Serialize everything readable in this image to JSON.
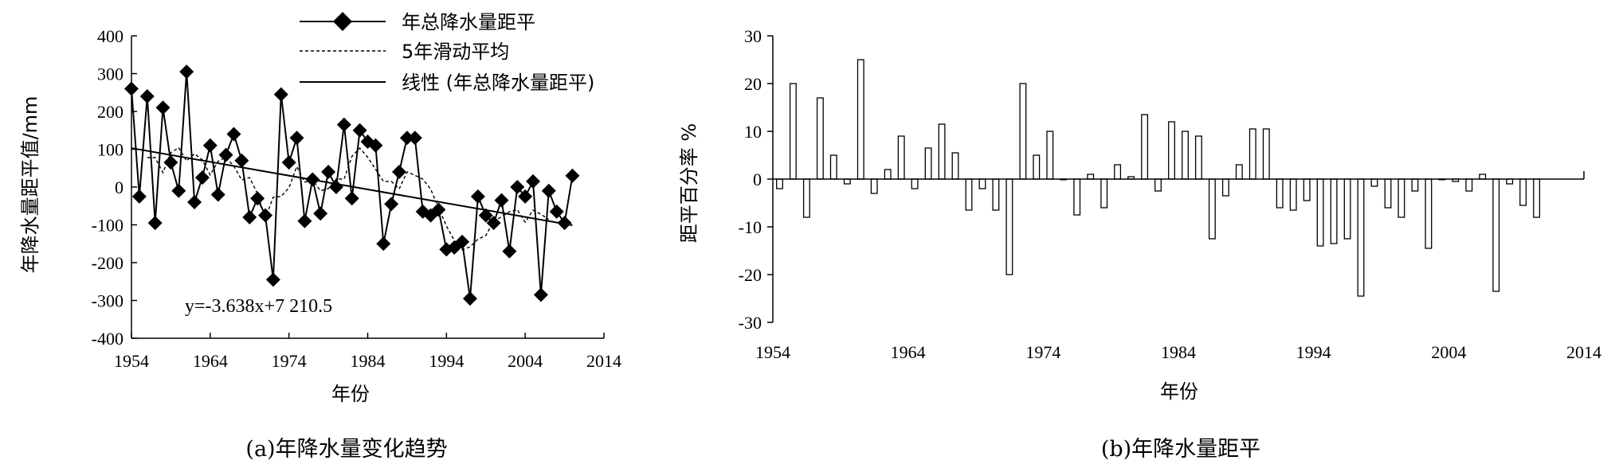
{
  "chart_data": [
    {
      "type": "line",
      "caption": "(a)年降水量变化趋势",
      "xlabel": "年份",
      "ylabel": "年降水量距平值/mm",
      "xlim": [
        1954,
        2014
      ],
      "ylim": [
        -400,
        400
      ],
      "xticks": [
        "1954",
        "1964",
        "1974",
        "1984",
        "1994",
        "2004",
        "2014"
      ],
      "yticks": [
        "400",
        "300",
        "200",
        "100",
        "0",
        "-100",
        "-200",
        "-300",
        "-400"
      ],
      "legend_position": "top-right",
      "equation": "y=-3.638x+7 210.5",
      "x": [
        1954,
        1955,
        1956,
        1957,
        1958,
        1959,
        1960,
        1961,
        1962,
        1963,
        1964,
        1965,
        1966,
        1967,
        1968,
        1969,
        1970,
        1971,
        1972,
        1973,
        1974,
        1975,
        1976,
        1977,
        1978,
        1979,
        1980,
        1981,
        1982,
        1983,
        1984,
        1985,
        1986,
        1987,
        1988,
        1989,
        1990,
        1991,
        1992,
        1993,
        1994,
        1995,
        1996,
        1997,
        1998,
        1999,
        2000,
        2001,
        2002,
        2003,
        2004,
        2005,
        2006,
        2007,
        2008,
        2009,
        2010
      ],
      "series": [
        {
          "name": "年总降水量距平",
          "marker": "diamond",
          "values": [
            260,
            -25,
            240,
            -95,
            210,
            65,
            -10,
            305,
            -40,
            25,
            110,
            -20,
            85,
            140,
            70,
            -80,
            -30,
            -75,
            -245,
            245,
            65,
            130,
            -90,
            20,
            -70,
            40,
            0,
            165,
            -30,
            150,
            120,
            110,
            -150,
            -45,
            40,
            130,
            130,
            -65,
            -75,
            -60,
            -165,
            -160,
            -145,
            -295,
            -25,
            -75,
            -95,
            -35,
            -170,
            0,
            -25,
            15,
            -285,
            -10,
            -65,
            -95,
            30
          ]
        },
        {
          "name": "5年滑动平均",
          "style": "dashed",
          "values": [
            null,
            null,
            78,
            78,
            38,
            91,
            104,
            69,
            88,
            72,
            32,
            68,
            79,
            55,
            19,
            25,
            -17,
            -83,
            -27,
            -25,
            -2,
            54,
            13,
            18,
            -10,
            -4,
            21,
            21,
            81,
            103,
            79,
            47,
            15,
            15,
            -5,
            40,
            31,
            21,
            -6,
            -55,
            -103,
            -141,
            -166,
            -158,
            -138,
            -128,
            -90,
            -79,
            -65,
            -60,
            -93,
            -61,
            -72,
            -86,
            null,
            null,
            null
          ]
        },
        {
          "name": "线性 (年总降水量距平)",
          "style": "solid",
          "line": [
            [
              1954,
              103
            ],
            [
              2010,
              -101
            ]
          ]
        }
      ]
    },
    {
      "type": "bar",
      "caption": "(b)年降水量距平",
      "xlabel": "年份",
      "ylabel": "距平百分率 %",
      "xlim": [
        1954,
        2014
      ],
      "ylim": [
        -30,
        30
      ],
      "xticks": [
        "1954",
        "1964",
        "1974",
        "1984",
        "1994",
        "2004",
        "2014"
      ],
      "yticks": [
        "30",
        "20",
        "10",
        "0",
        "-10",
        "-20",
        "-30"
      ],
      "x": [
        1954,
        1955,
        1956,
        1957,
        1958,
        1959,
        1960,
        1961,
        1962,
        1963,
        1964,
        1965,
        1966,
        1967,
        1968,
        1969,
        1970,
        1971,
        1972,
        1973,
        1974,
        1975,
        1976,
        1977,
        1978,
        1979,
        1980,
        1981,
        1982,
        1983,
        1984,
        1985,
        1986,
        1987,
        1988,
        1989,
        1990,
        1991,
        1992,
        1993,
        1994,
        1995,
        1996,
        1997,
        1998,
        1999,
        2000,
        2001,
        2002,
        2003,
        2004,
        2005,
        2006,
        2007,
        2008,
        2009,
        2010
      ],
      "values": [
        -2,
        20,
        -8,
        17,
        5,
        -1,
        25,
        -3,
        2,
        9,
        -2,
        6.5,
        11.5,
        5.5,
        -6.5,
        -2,
        -6.5,
        -20,
        20,
        5,
        10,
        0,
        -7.5,
        1,
        -6,
        3,
        0.5,
        13.5,
        -2.5,
        12,
        10,
        9,
        -12.5,
        -3.5,
        3,
        10.5,
        10.5,
        -6,
        -6.5,
        -4.5,
        -14,
        -13.5,
        -12.5,
        -24.5,
        -1.5,
        -6,
        -8,
        -2.5,
        -14.5,
        0,
        -0.5,
        -2.5,
        1,
        -23.5,
        -1,
        -5.5,
        -8
      ]
    }
  ]
}
